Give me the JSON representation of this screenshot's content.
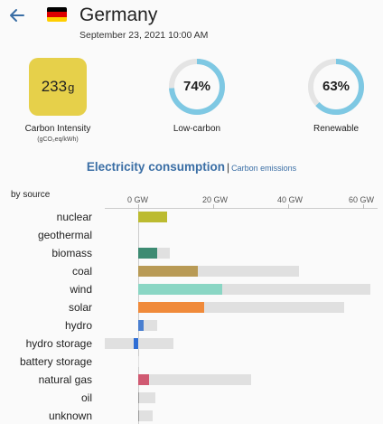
{
  "header": {
    "country": "Germany",
    "datetime": "September 23, 2021 10:00 AM",
    "flag_colors": [
      "#000000",
      "#dd0000",
      "#ffce00"
    ]
  },
  "carbon_intensity": {
    "value": "233",
    "unit": "g",
    "label": "Carbon Intensity",
    "sublabel": "(gCO₂eq/kWh)",
    "color": "#e6d04a"
  },
  "low_carbon": {
    "value": "74%",
    "fraction": 0.74,
    "label": "Low-carbon"
  },
  "renewable": {
    "value": "63%",
    "fraction": 0.63,
    "label": "Renewable"
  },
  "gauge_color": "#7ec8e3",
  "gauge_track": "#e4e4e4",
  "tabs": {
    "active": "Electricity consumption",
    "separator": "|",
    "other": "Carbon emissions"
  },
  "chart_data": {
    "type": "bar",
    "ylabel": "by source",
    "ticks": [
      "0 GW",
      "20 GW",
      "40 GW",
      "60 GW"
    ],
    "tick_values": [
      0,
      20,
      40,
      60
    ],
    "xlim": [
      -9,
      62
    ],
    "categories": [
      "nuclear",
      "geothermal",
      "biomass",
      "coal",
      "wind",
      "solar",
      "hydro",
      "hydro storage",
      "battery storage",
      "natural gas",
      "oil",
      "unknown"
    ],
    "series": [
      {
        "values": [
          7.8,
          0,
          5.0,
          16.0,
          22.5,
          17.5,
          1.5,
          -1.3,
          0,
          2.8,
          0.3,
          0.3
        ]
      },
      {
        "values": [
          7.8,
          0,
          8.5,
          43.0,
          62.0,
          55.0,
          5.0,
          9.5,
          0.2,
          30.0,
          4.5,
          3.8
        ]
      },
      {
        "values": [
          0,
          0,
          0,
          0,
          0,
          0,
          0,
          -9.0,
          0,
          0,
          0,
          0
        ]
      }
    ],
    "colors": [
      "#bcbb30",
      "#cccccc",
      "#3d8b72",
      "#b89a55",
      "#8ad6c4",
      "#f08a3a",
      "#4a7fd0",
      "#2e6dd4",
      "#cccccc",
      "#d05a72",
      "#999999",
      "#999999"
    ],
    "capacity_color": "#e0e0e0"
  },
  "icons": {
    "back": "arrow-left-icon",
    "flag": "germany-flag-icon"
  },
  "accent": "#3a6ea5"
}
